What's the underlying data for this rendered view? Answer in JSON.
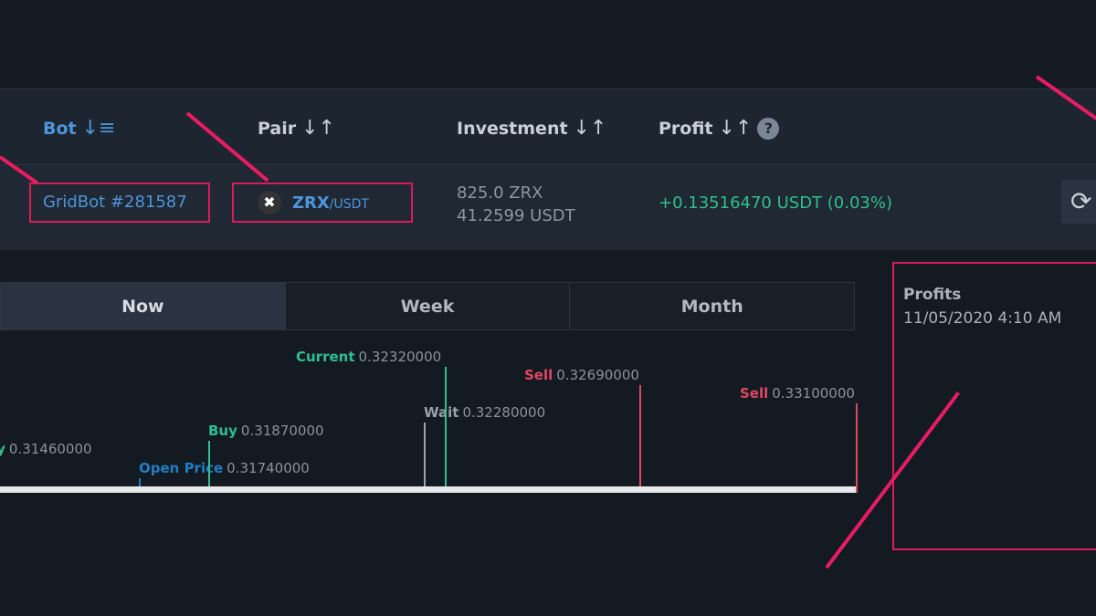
{
  "table": {
    "headers": [
      {
        "label": "Bot",
        "icon": "sort-desc-icon"
      },
      {
        "label": "Pair",
        "icon": "sort-icon"
      },
      {
        "label": "Investment",
        "icon": "sort-icon"
      },
      {
        "label": "Profit",
        "icon": "sort-icon",
        "help": "?"
      }
    ],
    "row": {
      "bot": "GridBot #281587",
      "pair_base": "ZRX",
      "pair_quote": "/USDT",
      "investment_1": "825.0 ZRX",
      "investment_2": "41.2599 USDT",
      "profit": "+0.13516470 USDT (0.03%)",
      "refresh_icon": "refresh-icon"
    }
  },
  "tabs": [
    {
      "label": "Now",
      "active": true
    },
    {
      "label": "Week"
    },
    {
      "label": "Month"
    }
  ],
  "grid": {
    "levels": [
      {
        "type": "Buy",
        "value": "0.31460000",
        "color": "#2fbf8f"
      },
      {
        "type": "Open Price",
        "value": "0.31740000",
        "color": "#1f7fc4"
      },
      {
        "type": "Buy",
        "value": "0.31870000",
        "color": "#2fbf8f"
      },
      {
        "type": "Wait",
        "value": "0.32280000",
        "color": "#9aa2ad"
      },
      {
        "type": "Current",
        "value": "0.32320000",
        "color": "#2fbf8f"
      },
      {
        "type": "Sell",
        "value": "0.32690000",
        "color": "#e0475f"
      },
      {
        "type": "Sell",
        "value": "0.33100000",
        "color": "#e0475f"
      }
    ]
  },
  "profits": {
    "title": "Profits",
    "timestamp": "11/05/2020 4:10 AM"
  },
  "colors": {
    "annotation": "#e81c63",
    "link": "#4d95dc",
    "profit": "#2fbf8f"
  }
}
